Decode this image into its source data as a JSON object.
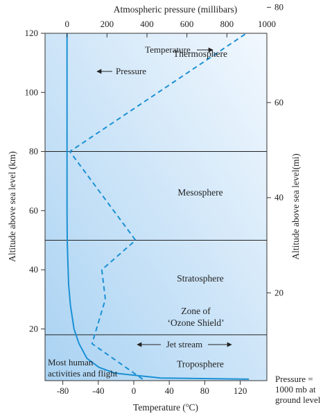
{
  "chart_data": {
    "type": "line",
    "top_axis": {
      "label": "Atmospheric pressure (millibars)",
      "ticks": [
        0,
        200,
        400,
        600,
        800,
        1000
      ],
      "range": [
        -110,
        1000
      ]
    },
    "bottom_axis": {
      "label": "Temperature (°C)",
      "ticks": [
        -80,
        -40,
        0,
        40,
        80,
        120
      ],
      "range": [
        -100,
        150
      ]
    },
    "left_axis": {
      "label": "Altitude above sea level (km)",
      "ticks": [
        20,
        40,
        60,
        80,
        100,
        120
      ],
      "range": [
        2.5,
        120
      ]
    },
    "right_axis": {
      "label": "Altitude above sea level(mi)",
      "ticks": [
        20,
        40,
        60,
        80
      ],
      "range": [
        1.55,
        74.56
      ]
    },
    "series": [
      {
        "name": "Temperature",
        "axis": "bottom",
        "style": "dashed",
        "points": [
          [
            10,
            3
          ],
          [
            -47,
            15
          ],
          [
            -32,
            30
          ],
          [
            -36,
            40
          ],
          [
            2,
            50
          ],
          [
            -72,
            80
          ],
          [
            127,
            120
          ]
        ]
      },
      {
        "name": "Pressure",
        "axis": "top",
        "style": "solid",
        "points": [
          [
            910,
            3
          ],
          [
            470,
            3.4
          ],
          [
            240,
            5
          ],
          [
            160,
            7
          ],
          [
            100,
            10
          ],
          [
            60,
            15
          ],
          [
            35,
            20
          ],
          [
            17,
            28
          ],
          [
            8,
            35
          ],
          [
            3,
            45
          ],
          [
            1,
            50
          ],
          [
            0,
            60
          ],
          [
            0,
            120
          ]
        ]
      }
    ],
    "layers": [
      {
        "name": "Thermosphere",
        "label_x": 75,
        "label_y": 113
      },
      {
        "name": "Mesosphere",
        "label_x": 75,
        "label_y": 66
      },
      {
        "name": "Stratosphere",
        "label_x": 75,
        "label_y": 37
      },
      {
        "name": "Zone of",
        "label_x": 70,
        "label_y": 26
      },
      {
        "name": "‘Ozone Shield’",
        "label_x": 70,
        "label_y": 22
      },
      {
        "name": "Troposphere",
        "label_x": 75,
        "label_y": 8
      }
    ],
    "boundaries": [
      80,
      50,
      18
    ],
    "annotations": {
      "temperature_arrow_label": "Temperature",
      "pressure_arrow_label": "Pressure",
      "jet_stream_label": "Jet stream",
      "human_note_line1": "Most human",
      "human_note_line2": "activities and flight",
      "pressure_note_line1": "Pressure =",
      "pressure_note_line2": "1000 mb at",
      "pressure_note_line3": "ground level"
    },
    "colors": {
      "line": "#1a90d4",
      "background_top": "#eef6fd",
      "background_bottom": "#a9d2f2",
      "boundary": "#222222"
    }
  }
}
